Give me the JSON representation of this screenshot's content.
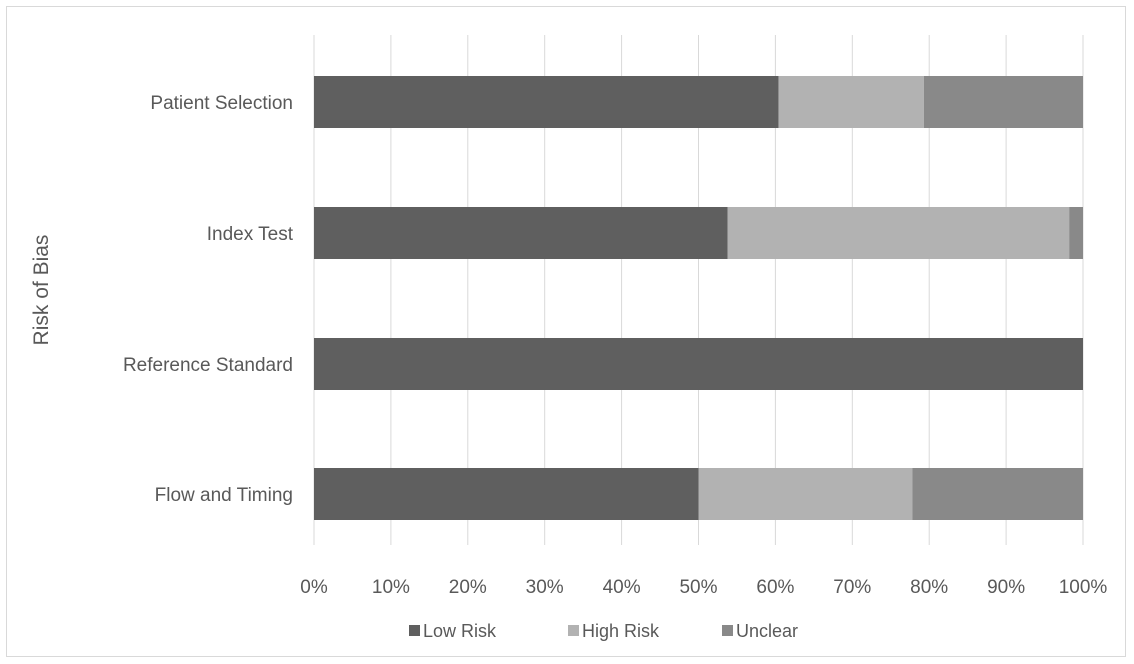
{
  "chart_data": {
    "type": "bar",
    "orientation": "horizontal",
    "stacked": "percent",
    "categories": [
      "Patient Selection",
      "Index Test",
      "Reference Standard",
      "Flow and Timing"
    ],
    "series": [
      {
        "name": "Low Risk",
        "values": [
          60.4,
          53.8,
          100,
          50.0
        ],
        "color": "#5f5f5f"
      },
      {
        "name": "High Risk",
        "values": [
          18.9,
          44.4,
          0,
          27.8
        ],
        "color": "#b2b2b2"
      },
      {
        "name": "Unclear",
        "values": [
          20.7,
          1.8,
          0,
          22.2
        ],
        "color": "#898989"
      }
    ],
    "title": "",
    "xlabel": "",
    "ylabel": "Risk of Bias",
    "xlim": [
      0,
      100
    ],
    "xticks": [
      "0%",
      "10%",
      "20%",
      "30%",
      "40%",
      "50%",
      "60%",
      "70%",
      "80%",
      "90%",
      "100%"
    ],
    "grid": "vertical",
    "legend": "bottom"
  }
}
